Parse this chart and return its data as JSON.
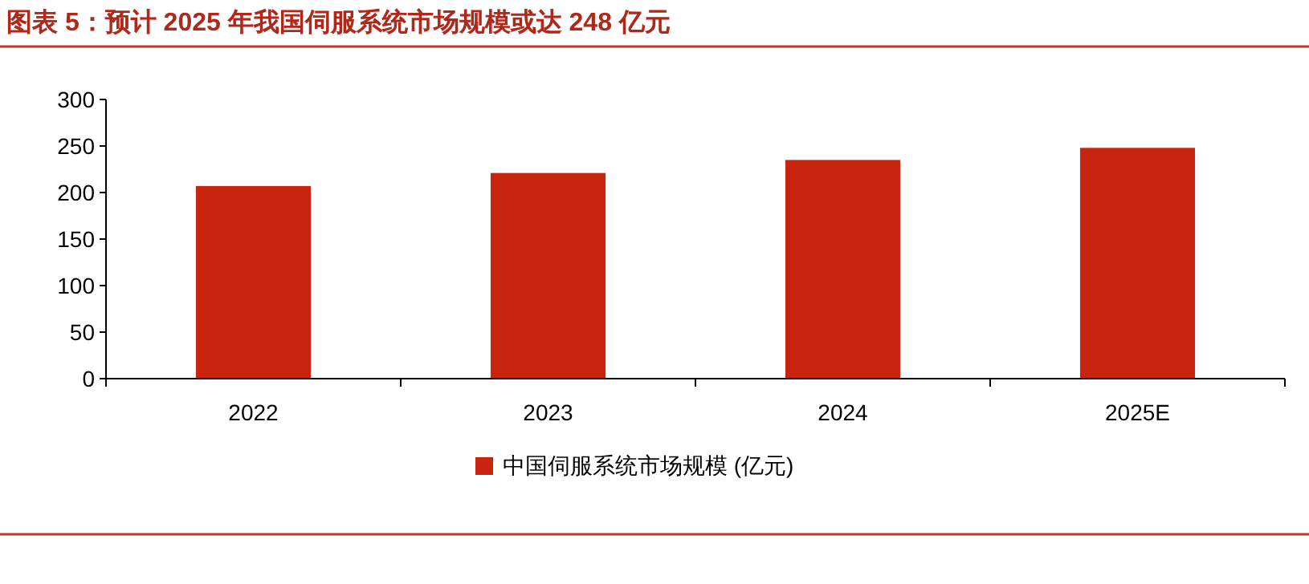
{
  "chart_data": {
    "type": "bar",
    "title": "图表 5：预计 2025 年我国伺服系统市场规模或达 248 亿元",
    "categories": [
      "2022",
      "2023",
      "2024",
      "2025E"
    ],
    "series": [
      {
        "name": "中国伺服系统市场规模 (亿元)",
        "color": "#c82410",
        "values": [
          207,
          221,
          235,
          248
        ]
      }
    ],
    "ylim": [
      0,
      300
    ],
    "yticks": [
      0,
      50,
      100,
      150,
      200,
      250,
      300
    ],
    "grid": false,
    "legend": "bottom"
  }
}
